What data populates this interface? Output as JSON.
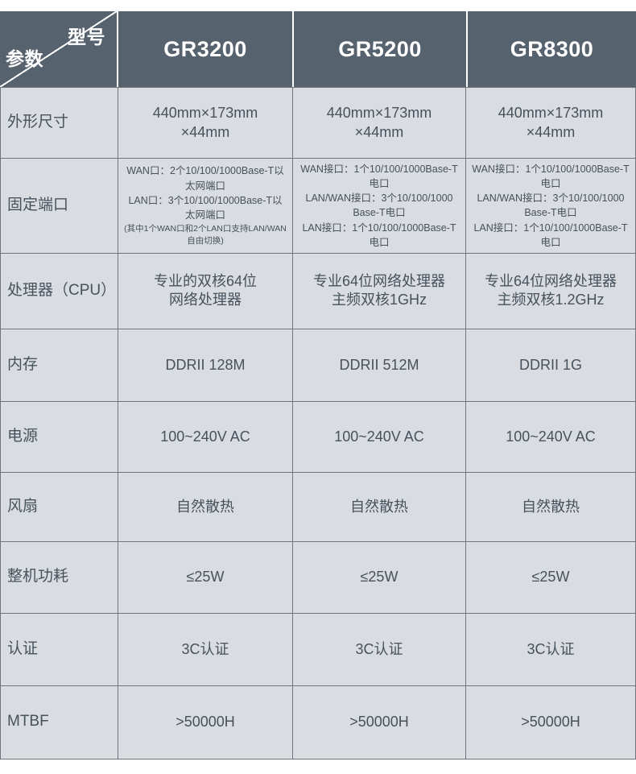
{
  "colors": {
    "header_bg": "#57626f",
    "header_text": "#ffffff",
    "cell_bg": "#d9dce0",
    "grid_line": "#70757b",
    "body_text": "#47525c"
  },
  "header": {
    "corner_top_right": "型号",
    "corner_bottom_left": "参数",
    "columns": [
      "GR3200",
      "GR5200",
      "GR8300"
    ]
  },
  "rows": [
    {
      "label": "外形尺寸",
      "cells": [
        {
          "text": "440mm×173mm\n×44mm"
        },
        {
          "text": "440mm×173mm\n×44mm"
        },
        {
          "text": "440mm×173mm\n×44mm"
        }
      ]
    },
    {
      "label": "固定端口",
      "cells": [
        {
          "text": "WAN口：2个10/100/1000Base-T以\n太网端口\nLAN口：3个10/100/1000Base-T以\n太网端口",
          "note": "(其中1个WAN口和2个LAN口支持LAN/WAN自由切换)"
        },
        {
          "text": "WAN接口：1个10/100/1000Base-T\n电口\nLAN/WAN接口：3个10/100/1000\nBase-T电口\nLAN接口：1个10/100/1000Base-T\n电口"
        },
        {
          "text": "WAN接口：1个10/100/1000Base-T\n电口\nLAN/WAN接口：3个10/100/1000\nBase-T电口\nLAN接口：1个10/100/1000Base-T\n电口"
        }
      ]
    },
    {
      "label": "处理器（CPU）",
      "cells": [
        {
          "text": "专业的双核64位\n网络处理器"
        },
        {
          "text": "专业64位网络处理器\n主频双核1GHz"
        },
        {
          "text": "专业64位网络处理器\n主频双核1.2GHz"
        }
      ]
    },
    {
      "label": "内存",
      "cells": [
        {
          "text": "DDRII 128M"
        },
        {
          "text": "DDRII 512M"
        },
        {
          "text": "DDRII 1G"
        }
      ]
    },
    {
      "label": "电源",
      "cells": [
        {
          "text": "100~240V AC"
        },
        {
          "text": "100~240V AC"
        },
        {
          "text": "100~240V AC"
        }
      ]
    },
    {
      "label": "风扇",
      "cells": [
        {
          "text": "自然散热"
        },
        {
          "text": "自然散热"
        },
        {
          "text": "自然散热"
        }
      ]
    },
    {
      "label": "整机功耗",
      "cells": [
        {
          "text": "≤25W"
        },
        {
          "text": "≤25W"
        },
        {
          "text": "≤25W"
        }
      ]
    },
    {
      "label": "认证",
      "cells": [
        {
          "text": "3C认证"
        },
        {
          "text": "3C认证"
        },
        {
          "text": "3C认证"
        }
      ]
    },
    {
      "label": "MTBF",
      "cells": [
        {
          "text": ">50000H"
        },
        {
          "text": ">50000H"
        },
        {
          "text": ">50000H"
        }
      ]
    }
  ]
}
